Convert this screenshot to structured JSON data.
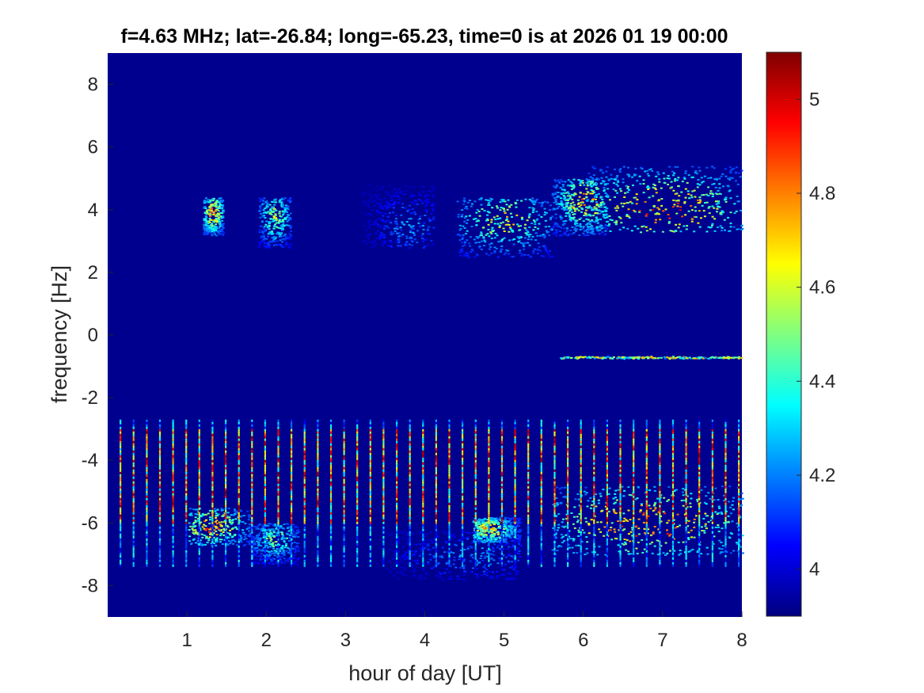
{
  "chart_data": {
    "type": "heatmap",
    "title": "f=4.63 MHz;  lat=-26.84; long=-65.23, time=0 is at 2026 01 19 00:00",
    "xlabel": "hour of day [UT]",
    "ylabel": "frequency [Hz]",
    "xlim": [
      0,
      8
    ],
    "ylim": [
      -9,
      9
    ],
    "x_ticks": [
      "1",
      "2",
      "3",
      "4",
      "5",
      "6",
      "7",
      "8"
    ],
    "y_ticks": [
      "-8",
      "-6",
      "-4",
      "-2",
      "0",
      "2",
      "4",
      "6",
      "8"
    ],
    "colormap": "jet",
    "color_range": [
      3.9,
      5.1
    ],
    "colorbar_ticks": [
      "4",
      "4.2",
      "4.4",
      "4.6",
      "4.8",
      "5"
    ],
    "background_color": "#00008f",
    "grid": false,
    "features": {
      "upper_traces": [
        {
          "hour": [
            1.2,
            1.45
          ],
          "freq": [
            3.2,
            4.4
          ],
          "peak_hour": 1.32,
          "peak_freq": 3.9,
          "level": 5.0
        },
        {
          "hour": [
            1.9,
            2.3
          ],
          "freq": [
            2.8,
            4.4
          ],
          "peak_hour": 2.1,
          "peak_freq": 3.8,
          "level": 4.7
        },
        {
          "hour": [
            3.2,
            4.1
          ],
          "freq": [
            2.8,
            4.8
          ],
          "peak_hour": 3.8,
          "peak_freq": 3.5,
          "level": 4.3
        },
        {
          "hour": [
            4.4,
            5.6
          ],
          "freq": [
            2.5,
            4.4
          ],
          "peak_hour": 5.0,
          "peak_freq": 3.7,
          "level": 4.8
        },
        {
          "hour": [
            5.6,
            6.3
          ],
          "freq": [
            3.2,
            5.0
          ],
          "peak_hour": 6.0,
          "peak_freq": 4.3,
          "level": 4.9
        },
        {
          "hour": [
            6.0,
            8.0
          ],
          "freq": [
            3.3,
            5.4
          ],
          "peak_hour": 7.0,
          "peak_freq": 4.1,
          "level": 5.1
        }
      ],
      "lower_traces": [
        {
          "hour": [
            1.0,
            1.8
          ],
          "freq": [
            -6.7,
            -5.5
          ],
          "peak_hour": 1.3,
          "peak_freq": -6.1,
          "level": 5.0
        },
        {
          "hour": [
            1.8,
            2.4
          ],
          "freq": [
            -7.3,
            -6.0
          ],
          "peak_hour": 2.1,
          "peak_freq": -6.5,
          "level": 4.6
        },
        {
          "hour": [
            3.5,
            5.2
          ],
          "freq": [
            -7.8,
            -6.2
          ],
          "peak_hour": 4.6,
          "peak_freq": -7.0,
          "level": 4.3
        },
        {
          "hour": [
            4.6,
            5.2
          ],
          "freq": [
            -6.6,
            -5.8
          ],
          "peak_hour": 4.8,
          "peak_freq": -6.2,
          "level": 4.9
        },
        {
          "hour": [
            5.6,
            8.0
          ],
          "freq": [
            -7.0,
            -4.8
          ],
          "peak_hour": 6.8,
          "peak_freq": -6.0,
          "level": 5.1
        }
      ],
      "zero_band": {
        "hour": [
          5.7,
          8.0
        ],
        "freq_start": -0.7,
        "freq_end": -0.7,
        "level": 4.8
      },
      "vertical_stripes": {
        "hour_start": 0.15,
        "hour_end": 7.95,
        "count": 48,
        "freq": [
          -7.4,
          -2.7
        ],
        "core_freq": [
          -6.0,
          -3.0
        ]
      }
    }
  }
}
